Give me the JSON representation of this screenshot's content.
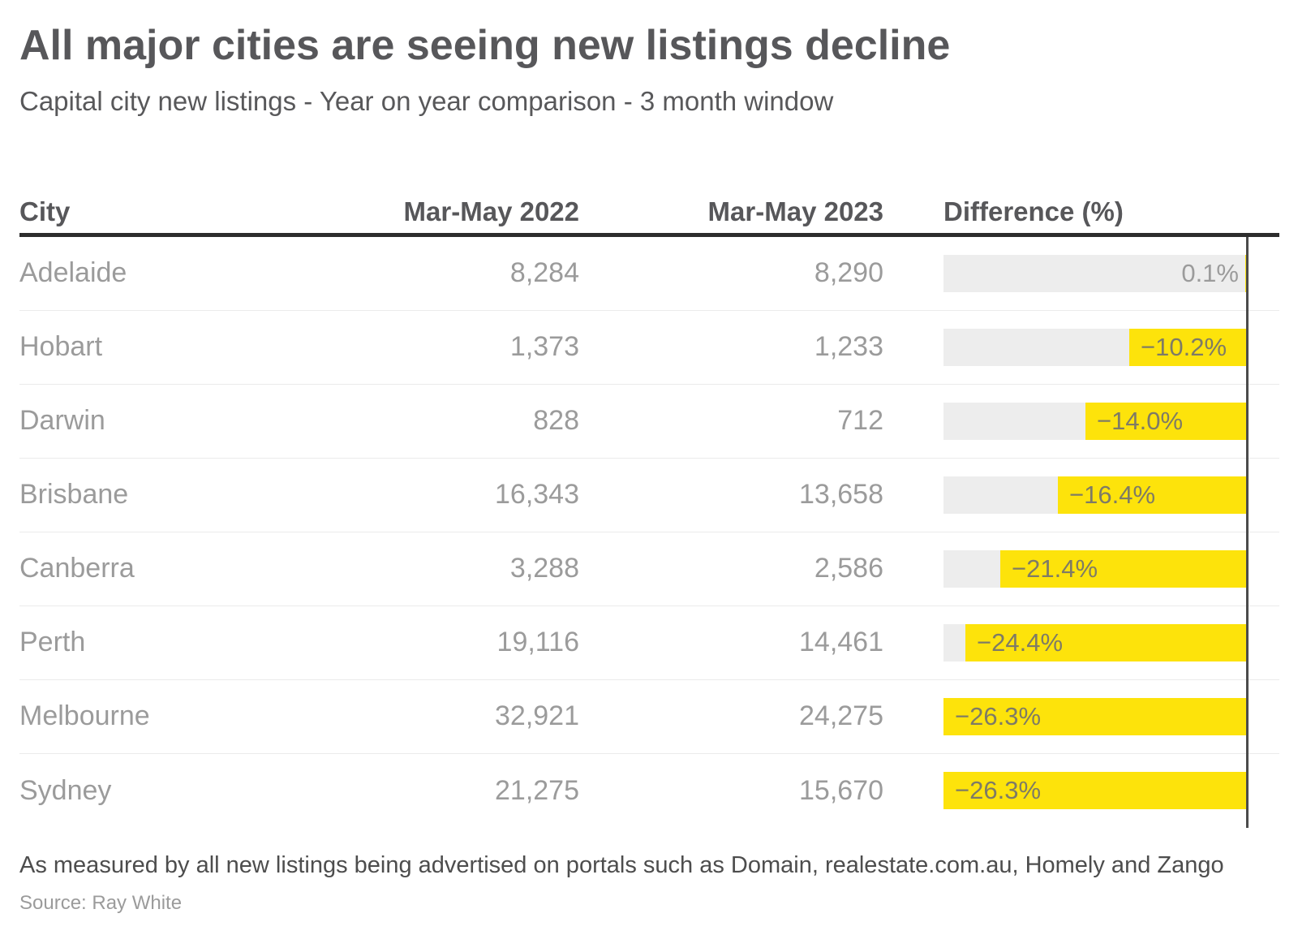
{
  "title": "All major cities are seeing new listings decline",
  "subtitle": "Capital city new listings - Year on year comparison - 3 month window",
  "columns": {
    "city": "City",
    "period_2022": "Mar-May 2022",
    "period_2023": "Mar-May 2023",
    "difference": "Difference (%)"
  },
  "footnote": "As measured by all new listings being advertised on portals such as Domain, realestate.com.au, Homely and Zango",
  "source": "Source: Ray White",
  "colors": {
    "bar_yellow": "#fde30b",
    "bar_track_gray": "#ededed",
    "axis_line": "#4b4b4b",
    "header_rule": "#2d2d2d",
    "row_text": "#9b9b9b"
  },
  "chart_data": {
    "type": "bar",
    "orientation": "horizontal",
    "title": "All major cities are seeing new listings decline",
    "subtitle": "Capital city new listings - Year on year comparison - 3 month window",
    "value_axis": "Difference (%)",
    "axis_max_abs_pct": 26.3,
    "bars_anchored": "right",
    "grid": false,
    "legend": false,
    "rows": [
      {
        "city": "Adelaide",
        "listings_2022": 8284,
        "listings_2023": 8290,
        "label_2022": "8,284",
        "label_2023": "8,290",
        "diff_pct": 0.1,
        "diff_label": "0.1%"
      },
      {
        "city": "Hobart",
        "listings_2022": 1373,
        "listings_2023": 1233,
        "label_2022": "1,373",
        "label_2023": "1,233",
        "diff_pct": -10.2,
        "diff_label": "−10.2%"
      },
      {
        "city": "Darwin",
        "listings_2022": 828,
        "listings_2023": 712,
        "label_2022": "828",
        "label_2023": "712",
        "diff_pct": -14.0,
        "diff_label": "−14.0%"
      },
      {
        "city": "Brisbane",
        "listings_2022": 16343,
        "listings_2023": 13658,
        "label_2022": "16,343",
        "label_2023": "13,658",
        "diff_pct": -16.4,
        "diff_label": "−16.4%"
      },
      {
        "city": "Canberra",
        "listings_2022": 3288,
        "listings_2023": 2586,
        "label_2022": "3,288",
        "label_2023": "2,586",
        "diff_pct": -21.4,
        "diff_label": "−21.4%"
      },
      {
        "city": "Perth",
        "listings_2022": 19116,
        "listings_2023": 14461,
        "label_2022": "19,116",
        "label_2023": "14,461",
        "diff_pct": -24.4,
        "diff_label": "−24.4%"
      },
      {
        "city": "Melbourne",
        "listings_2022": 32921,
        "listings_2023": 24275,
        "label_2022": "32,921",
        "label_2023": "24,275",
        "diff_pct": -26.3,
        "diff_label": "−26.3%"
      },
      {
        "city": "Sydney",
        "listings_2022": 21275,
        "listings_2023": 15670,
        "label_2022": "21,275",
        "label_2023": "15,670",
        "diff_pct": -26.3,
        "diff_label": "−26.3%"
      }
    ]
  }
}
